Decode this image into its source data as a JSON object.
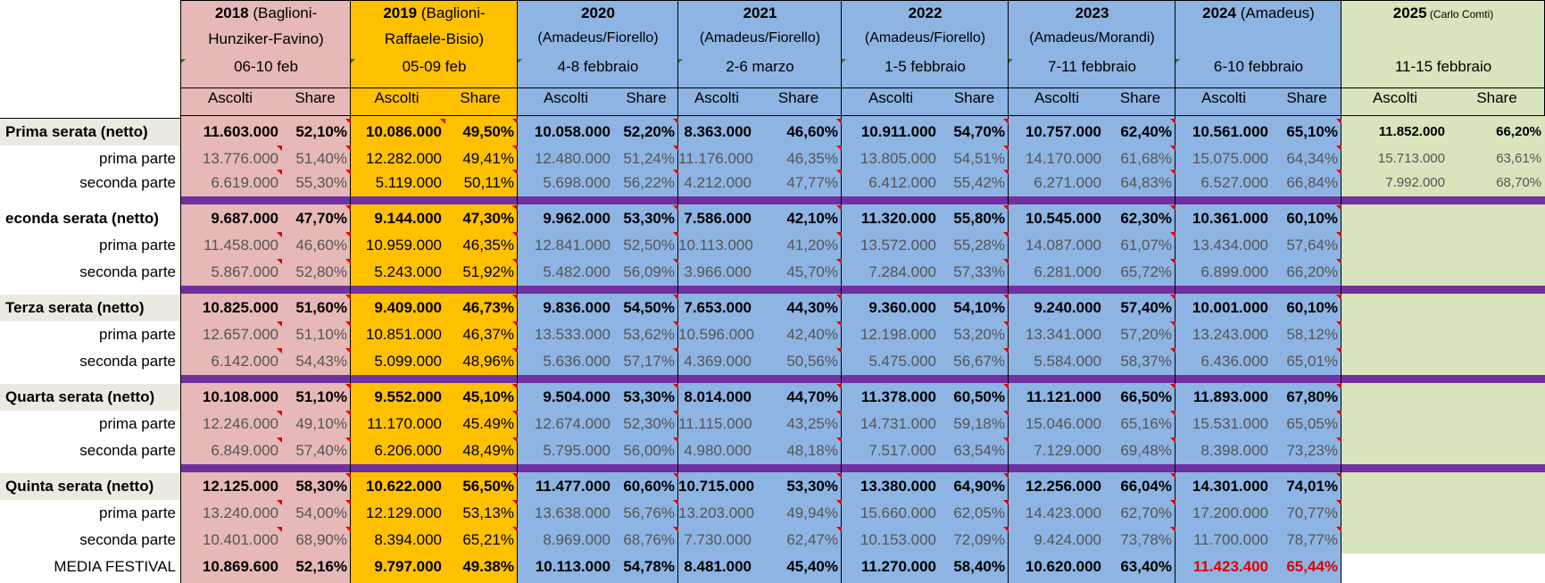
{
  "colors": {
    "pink": "#e6b8b7",
    "orange": "#ffc000",
    "blue": "#8db4e2",
    "green": "#d8e4bc",
    "label_bg": "#ece9e0",
    "separator": "#7030a0",
    "highlight_red": "#e00000"
  },
  "header": {
    "years": [
      {
        "bold": "2018",
        "rest": " (Baglioni-",
        "line2": "Hunziker-Favino)",
        "dates": "06-10 feb"
      },
      {
        "bold": "2019",
        "rest": " (Baglioni-",
        "line2": "Raffaele-Bisio)",
        "dates": "05-09 feb"
      },
      {
        "bold": "2020",
        "rest": "",
        "line2": "(Amadeus/Fiorello)",
        "dates": "4-8 febbraio"
      },
      {
        "bold": "2021",
        "rest": "",
        "line2": "(Amadeus/Fiorello)",
        "dates": "2-6 marzo"
      },
      {
        "bold": "2022",
        "rest": "",
        "line2": "(Amadeus/Fiorello)",
        "dates": "1-5 febbraio"
      },
      {
        "bold": "2023",
        "rest": "",
        "line2": "(Amadeus/Morandi)",
        "dates": "7-11 febbraio"
      },
      {
        "bold": "2024",
        "rest": " (Amadeus)",
        "line2": "",
        "dates": "6-10 febbraio"
      },
      {
        "bold": "2025",
        "rest": " (Carlo Comti)",
        "line2": "",
        "dates": "11-15 febbraio"
      }
    ],
    "ascolti_label": "Ascolti",
    "share_label": "Share"
  },
  "table": {
    "rows": [
      {
        "label": "Prima serata (netto)",
        "type": "net",
        "values": [
          [
            "11.603.000",
            "52,10%"
          ],
          [
            "10.086.000",
            "49,50%"
          ],
          [
            "10.058.000",
            "52,20%"
          ],
          [
            "8.363.000",
            "46,60%"
          ],
          [
            "10.911.000",
            "54,70%"
          ],
          [
            "10.757.000",
            "62,40%"
          ],
          [
            "10.561.000",
            "65,10%"
          ],
          [
            "11.852.000",
            "66,20%"
          ]
        ]
      },
      {
        "label": "prima parte",
        "type": "part",
        "values": [
          [
            "13.776.000",
            "51,40%"
          ],
          [
            "12.282.000",
            "49,41%"
          ],
          [
            "12.480.000",
            "51,24%"
          ],
          [
            "11.176.000",
            "46,35%"
          ],
          [
            "13.805.000",
            "54,51%"
          ],
          [
            "14.170.000",
            "61,68%"
          ],
          [
            "15.075.000",
            "64,34%"
          ],
          [
            "15.713.000",
            "63,61%"
          ]
        ]
      },
      {
        "label": "seconda parte",
        "type": "part",
        "values": [
          [
            "6.619.000",
            "55,30%"
          ],
          [
            "5.119.000",
            "50,11%"
          ],
          [
            "5.698.000",
            "56,22%"
          ],
          [
            "4.212.000",
            "47,77%"
          ],
          [
            "6.412.000",
            "55,42%"
          ],
          [
            "6.271.000",
            "64,83%"
          ],
          [
            "6.527.000",
            "66,84%"
          ],
          [
            "7.992.000",
            "68,70%"
          ]
        ]
      },
      {
        "label": "econda serata (netto)",
        "type": "net",
        "values": [
          [
            "9.687.000",
            "47,70%"
          ],
          [
            "9.144.000",
            "47,30%"
          ],
          [
            "9.962.000",
            "53,30%"
          ],
          [
            "7.586.000",
            "42,10%"
          ],
          [
            "11.320.000",
            "55,80%"
          ],
          [
            "10.545.000",
            "62,30%"
          ],
          [
            "10.361.000",
            "60,10%"
          ]
        ]
      },
      {
        "label": "prima parte",
        "type": "part",
        "values": [
          [
            "11.458.000",
            "46,60%"
          ],
          [
            "10.959.000",
            "46,35%"
          ],
          [
            "12.841.000",
            "52,50%"
          ],
          [
            "10.113.000",
            "41,20%"
          ],
          [
            "13.572.000",
            "55,28%"
          ],
          [
            "14.087.000",
            "61,07%"
          ],
          [
            "13.434.000",
            "57,64%"
          ]
        ]
      },
      {
        "label": "seconda parte",
        "type": "part",
        "values": [
          [
            "5.867.000",
            "52,80%"
          ],
          [
            "5.243.000",
            "51,92%"
          ],
          [
            "5.482.000",
            "56,09%"
          ],
          [
            "3.966.000",
            "45,70%"
          ],
          [
            "7.284.000",
            "57,33%"
          ],
          [
            "6.281.000",
            "65,72%"
          ],
          [
            "6.899.000",
            "66,20%"
          ]
        ]
      },
      {
        "label": "Terza serata (netto)",
        "type": "net",
        "values": [
          [
            "10.825.000",
            "51,60%"
          ],
          [
            "9.409.000",
            "46,73%"
          ],
          [
            "9.836.000",
            "54,50%"
          ],
          [
            "7.653.000",
            "44,30%"
          ],
          [
            "9.360.000",
            "54,10%"
          ],
          [
            "9.240.000",
            "57,40%"
          ],
          [
            "10.001.000",
            "60,10%"
          ]
        ]
      },
      {
        "label": "prima parte",
        "type": "part",
        "values": [
          [
            "12.657.000",
            "51,10%"
          ],
          [
            "10.851.000",
            "46,37%"
          ],
          [
            "13.533.000",
            "53,62%"
          ],
          [
            "10.596.000",
            "42,40%"
          ],
          [
            "12.198.000",
            "53,20%"
          ],
          [
            "13.341.000",
            "57,20%"
          ],
          [
            "13.243.000",
            "58,12%"
          ]
        ]
      },
      {
        "label": "seconda parte",
        "type": "part",
        "values": [
          [
            "6.142.000",
            "54,43%"
          ],
          [
            "5.099.000",
            "48,96%"
          ],
          [
            "5.636.000",
            "57,17%"
          ],
          [
            "4.369.000",
            "50,56%"
          ],
          [
            "5.475.000",
            "56,67%"
          ],
          [
            "5.584.000",
            "58,37%"
          ],
          [
            "6.436.000",
            "65,01%"
          ]
        ]
      },
      {
        "label": "Quarta serata (netto)",
        "type": "net",
        "values": [
          [
            "10.108.000",
            "51,10%"
          ],
          [
            "9.552.000",
            "45,10%"
          ],
          [
            "9.504.000",
            "53,30%"
          ],
          [
            "8.014.000",
            "44,70%"
          ],
          [
            "11.378.000",
            "60,50%"
          ],
          [
            "11.121.000",
            "66,50%"
          ],
          [
            "11.893.000",
            "67,80%"
          ]
        ]
      },
      {
        "label": "prima parte",
        "type": "part",
        "values": [
          [
            "12.246.000",
            "49,10%"
          ],
          [
            "11.170.000",
            "45.49%"
          ],
          [
            "12.674.000",
            "52,30%"
          ],
          [
            "11.115.000",
            "43,25%"
          ],
          [
            "14.731.000",
            "59,18%"
          ],
          [
            "15.046.000",
            "65,16%"
          ],
          [
            "15.531.000",
            "65,05%"
          ]
        ]
      },
      {
        "label": "seconda parte",
        "type": "part",
        "values": [
          [
            "6.849.000",
            "57,40%"
          ],
          [
            "6.206.000",
            "48,49%"
          ],
          [
            "5.795.000",
            "56,00%"
          ],
          [
            "4.980.000",
            "48,18%"
          ],
          [
            "7.517.000",
            "63,54%"
          ],
          [
            "7.129.000",
            "69,48%"
          ],
          [
            "8.398.000",
            "73,23%"
          ]
        ]
      },
      {
        "label": "Quinta serata (netto)",
        "type": "net",
        "values": [
          [
            "12.125.000",
            "58,30%"
          ],
          [
            "10.622.000",
            "56,50%"
          ],
          [
            "11.477.000",
            "60,60%"
          ],
          [
            "10.715.000",
            "53,30%"
          ],
          [
            "13.380.000",
            "64,90%"
          ],
          [
            "12.256.000",
            "66,04%"
          ],
          [
            "14.301.000",
            "74,01%"
          ]
        ]
      },
      {
        "label": "prima parte",
        "type": "part",
        "values": [
          [
            "13.240.000",
            "54,00%"
          ],
          [
            "12.129.000",
            "53,13%"
          ],
          [
            "13.638.000",
            "56,76%"
          ],
          [
            "13.203.000",
            "49,94%"
          ],
          [
            "15.660.000",
            "62,05%"
          ],
          [
            "14.423.000",
            "62,70%"
          ],
          [
            "17.200.000",
            "70,77%"
          ]
        ]
      },
      {
        "label": "seconda parte",
        "type": "part",
        "values": [
          [
            "10.401.000",
            "68,90%"
          ],
          [
            "8.394.000",
            "65,21%"
          ],
          [
            "8.969.000",
            "68,76%"
          ],
          [
            "7.730.000",
            "62,47%"
          ],
          [
            "10.153.000",
            "72,09%"
          ],
          [
            "9.424.000",
            "73,78%"
          ],
          [
            "11.700.000",
            "78,77%"
          ]
        ]
      },
      {
        "label": "MEDIA FESTIVAL",
        "type": "media",
        "values": [
          [
            "10.869.600",
            "52,16%"
          ],
          [
            "9.797.000",
            "49.38%"
          ],
          [
            "10.113.000",
            "54,78%"
          ],
          [
            "8.481.000",
            "45,40%"
          ],
          [
            "11.270.000",
            "58,40%"
          ],
          [
            "10.620.000",
            "63,40%"
          ],
          [
            "11.423.400",
            "65,44%"
          ]
        ]
      }
    ]
  }
}
